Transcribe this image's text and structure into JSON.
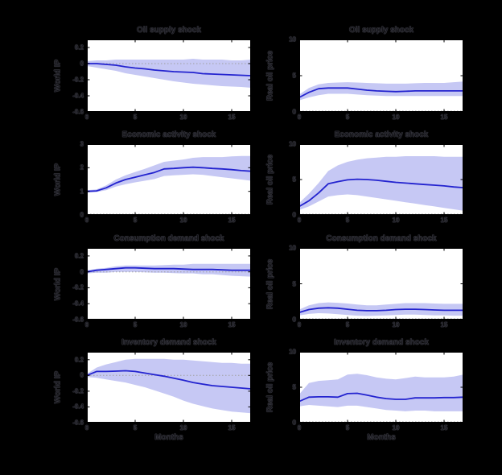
{
  "figure": {
    "xlabel": "Months",
    "row_titles": [
      "Oil supply shock",
      "Economic activity shock",
      "Consumption demand shock",
      "Inventory demand shock"
    ],
    "left_column_ylabel": "World IP",
    "right_column_ylabel": "Real oil price"
  },
  "colors": {
    "page_background": "#000000",
    "plot_background": "#ffffff",
    "band": "#c6c8f4",
    "line": "#2323cf",
    "zero_line": "#a0a0a0",
    "frame": "#000000",
    "tick": "#000000"
  },
  "chart_data": [
    {
      "type": "line",
      "title": "Oil supply shock",
      "ylabel": "World IP",
      "xlabel": "",
      "xlim": [
        0,
        17
      ],
      "ylim": [
        -0.6,
        0.3
      ],
      "xticks": [
        0,
        5,
        10,
        15
      ],
      "xtick_labels": [
        "0",
        "5",
        "10",
        "15"
      ],
      "yticks": [
        0.2,
        0,
        -0.2,
        -0.4,
        -0.6
      ],
      "ytick_labels": [
        "0.2",
        "0",
        "-0.2",
        "-0.4",
        "-0.6"
      ],
      "zero_line": true,
      "grid": false,
      "legend": "none",
      "x": [
        0,
        1,
        2,
        3,
        4,
        5,
        6,
        7,
        8,
        9,
        10,
        11,
        12,
        13,
        14,
        15,
        16,
        17
      ],
      "series": [
        {
          "name": "median",
          "values": [
            0,
            0,
            -0.01,
            -0.02,
            -0.04,
            -0.055,
            -0.065,
            -0.08,
            -0.09,
            -0.1,
            -0.105,
            -0.11,
            -0.125,
            -0.13,
            -0.135,
            -0.14,
            -0.145,
            -0.15
          ]
        },
        {
          "name": "lower_band",
          "values": [
            -0.03,
            -0.05,
            -0.07,
            -0.09,
            -0.12,
            -0.14,
            -0.16,
            -0.18,
            -0.2,
            -0.22,
            -0.235,
            -0.25,
            -0.26,
            -0.27,
            -0.28,
            -0.285,
            -0.29,
            -0.3
          ]
        },
        {
          "name": "upper_band",
          "values": [
            0.03,
            0.04,
            0.04,
            0.05,
            0.05,
            0.05,
            0.05,
            0.05,
            0.05,
            0.05,
            0.05,
            0.06,
            0.05,
            0.05,
            0.05,
            0.04,
            0.04,
            0.05
          ]
        }
      ]
    },
    {
      "type": "line",
      "title": "Oil supply shock",
      "ylabel": "Real oil price",
      "xlabel": "",
      "xlim": [
        0,
        17
      ],
      "ylim": [
        0,
        10
      ],
      "xticks": [
        0,
        5,
        10,
        15
      ],
      "xtick_labels": [
        "0",
        "5",
        "10",
        "15"
      ],
      "yticks": [
        10,
        5,
        0
      ],
      "ytick_labels": [
        "10",
        "5",
        "0"
      ],
      "zero_line": true,
      "grid": false,
      "legend": "none",
      "x": [
        0,
        1,
        2,
        3,
        4,
        5,
        6,
        7,
        8,
        9,
        10,
        11,
        12,
        13,
        14,
        15,
        16,
        17
      ],
      "series": [
        {
          "name": "median",
          "values": [
            2.0,
            2.7,
            3.2,
            3.3,
            3.3,
            3.3,
            3.15,
            3.0,
            2.9,
            2.85,
            2.8,
            2.85,
            2.9,
            2.9,
            2.9,
            2.9,
            2.9,
            2.9
          ]
        },
        {
          "name": "lower_band",
          "values": [
            1.6,
            2.0,
            2.3,
            2.5,
            2.5,
            2.5,
            2.4,
            2.3,
            2.25,
            2.2,
            2.2,
            2.2,
            2.2,
            2.2,
            2.2,
            2.2,
            2.2,
            2.2
          ]
        },
        {
          "name": "upper_band",
          "values": [
            2.4,
            3.3,
            3.8,
            4.0,
            4.05,
            4.1,
            4.05,
            4.0,
            3.95,
            3.9,
            3.9,
            3.9,
            3.95,
            4.0,
            4.0,
            4.0,
            4.1,
            4.2
          ]
        }
      ]
    },
    {
      "type": "line",
      "title": "Economic activity shock",
      "ylabel": "World IP",
      "xlabel": "",
      "xlim": [
        0,
        17
      ],
      "ylim": [
        0,
        3
      ],
      "xticks": [
        0,
        5,
        10,
        15
      ],
      "xtick_labels": [
        "0",
        "5",
        "10",
        "15"
      ],
      "yticks": [
        3,
        2,
        1,
        0
      ],
      "ytick_labels": [
        "3",
        "2",
        "1",
        "0"
      ],
      "zero_line": true,
      "grid": false,
      "legend": "none",
      "x": [
        0,
        1,
        2,
        3,
        4,
        5,
        6,
        7,
        8,
        9,
        10,
        11,
        12,
        13,
        14,
        15,
        16,
        17
      ],
      "series": [
        {
          "name": "median",
          "values": [
            1.0,
            1.02,
            1.15,
            1.35,
            1.5,
            1.6,
            1.7,
            1.8,
            1.95,
            1.97,
            2.0,
            2.02,
            2.0,
            1.97,
            1.95,
            1.92,
            1.88,
            1.85
          ]
        },
        {
          "name": "lower_band",
          "values": [
            0.95,
            0.97,
            1.05,
            1.2,
            1.3,
            1.38,
            1.45,
            1.52,
            1.65,
            1.68,
            1.7,
            1.72,
            1.7,
            1.65,
            1.6,
            1.55,
            1.5,
            1.45
          ]
        },
        {
          "name": "upper_band",
          "values": [
            1.05,
            1.08,
            1.25,
            1.5,
            1.68,
            1.82,
            1.95,
            2.1,
            2.25,
            2.3,
            2.35,
            2.42,
            2.45,
            2.45,
            2.45,
            2.48,
            2.5,
            2.5
          ]
        }
      ]
    },
    {
      "type": "line",
      "title": "Economic activity shock",
      "ylabel": "Real oil price",
      "xlabel": "",
      "xlim": [
        0,
        17
      ],
      "ylim": [
        0,
        10
      ],
      "xticks": [
        0,
        5,
        10,
        15
      ],
      "xtick_labels": [
        "0",
        "5",
        "10",
        "15"
      ],
      "yticks": [
        10,
        5,
        0
      ],
      "ytick_labels": [
        "10",
        "5",
        "0"
      ],
      "zero_line": true,
      "grid": false,
      "legend": "none",
      "x": [
        0,
        1,
        2,
        3,
        4,
        5,
        6,
        7,
        8,
        9,
        10,
        11,
        12,
        13,
        14,
        15,
        16,
        17
      ],
      "series": [
        {
          "name": "median",
          "values": [
            1.2,
            2.0,
            3.1,
            4.4,
            4.7,
            4.95,
            5.05,
            5.0,
            4.9,
            4.75,
            4.6,
            4.5,
            4.4,
            4.3,
            4.2,
            4.1,
            3.95,
            3.85
          ]
        },
        {
          "name": "lower_band",
          "values": [
            0.7,
            1.2,
            1.9,
            2.6,
            2.8,
            2.9,
            2.8,
            2.6,
            2.4,
            2.2,
            2.0,
            1.8,
            1.6,
            1.4,
            1.2,
            1.0,
            0.8,
            0.6
          ]
        },
        {
          "name": "upper_band",
          "values": [
            1.7,
            3.0,
            4.5,
            6.2,
            7.0,
            7.5,
            7.8,
            8.0,
            8.1,
            8.2,
            8.2,
            8.3,
            8.3,
            8.3,
            8.3,
            8.2,
            8.2,
            8.2
          ]
        }
      ]
    },
    {
      "type": "line",
      "title": "Consumption demand shock",
      "ylabel": "World IP",
      "xlabel": "",
      "xlim": [
        0,
        17
      ],
      "ylim": [
        -0.6,
        0.3
      ],
      "xticks": [
        0,
        5,
        10,
        15
      ],
      "xtick_labels": [
        "0",
        "5",
        "10",
        "15"
      ],
      "yticks": [
        0.2,
        0,
        -0.2,
        -0.4,
        -0.6
      ],
      "ytick_labels": [
        "0.2",
        "0",
        "-0.2",
        "-0.4",
        "-0.6"
      ],
      "zero_line": true,
      "grid": false,
      "legend": "none",
      "x": [
        0,
        1,
        2,
        3,
        4,
        5,
        6,
        7,
        8,
        9,
        10,
        11,
        12,
        13,
        14,
        15,
        16,
        17
      ],
      "series": [
        {
          "name": "median",
          "values": [
            0.0,
            0.02,
            0.03,
            0.04,
            0.05,
            0.05,
            0.045,
            0.04,
            0.04,
            0.04,
            0.035,
            0.03,
            0.03,
            0.03,
            0.025,
            0.02,
            0.02,
            0.02
          ]
        },
        {
          "name": "lower_band",
          "values": [
            -0.02,
            -0.01,
            -0.01,
            0.0,
            0.0,
            0.0,
            -0.005,
            -0.01,
            -0.01,
            -0.015,
            -0.02,
            -0.02,
            -0.03,
            -0.03,
            -0.04,
            -0.05,
            -0.055,
            -0.06
          ]
        },
        {
          "name": "upper_band",
          "values": [
            0.02,
            0.04,
            0.05,
            0.07,
            0.08,
            0.08,
            0.08,
            0.08,
            0.085,
            0.09,
            0.09,
            0.1,
            0.1,
            0.1,
            0.1,
            0.1,
            0.1,
            0.1
          ]
        }
      ]
    },
    {
      "type": "line",
      "title": "Consumption demand shock",
      "ylabel": "Real oil price",
      "xlabel": "",
      "xlim": [
        0,
        17
      ],
      "ylim": [
        0,
        10
      ],
      "xticks": [
        0,
        5,
        10,
        15
      ],
      "xtick_labels": [
        "0",
        "5",
        "10",
        "15"
      ],
      "yticks": [
        10,
        5,
        0
      ],
      "ytick_labels": [
        "10",
        "5",
        "0"
      ],
      "zero_line": true,
      "grid": false,
      "legend": "none",
      "x": [
        0,
        1,
        2,
        3,
        4,
        5,
        6,
        7,
        8,
        9,
        10,
        11,
        12,
        13,
        14,
        15,
        16,
        17
      ],
      "series": [
        {
          "name": "median",
          "values": [
            1.0,
            1.4,
            1.6,
            1.65,
            1.6,
            1.45,
            1.3,
            1.25,
            1.25,
            1.3,
            1.4,
            1.45,
            1.45,
            1.4,
            1.35,
            1.3,
            1.3,
            1.3
          ]
        },
        {
          "name": "lower_band",
          "values": [
            0.6,
            0.8,
            0.9,
            0.85,
            0.75,
            0.65,
            0.55,
            0.5,
            0.55,
            0.6,
            0.65,
            0.7,
            0.7,
            0.65,
            0.6,
            0.6,
            0.55,
            0.55
          ]
        },
        {
          "name": "upper_band",
          "values": [
            1.4,
            2.0,
            2.3,
            2.4,
            2.35,
            2.25,
            2.1,
            2.0,
            2.0,
            2.1,
            2.2,
            2.3,
            2.3,
            2.3,
            2.25,
            2.2,
            2.2,
            2.2
          ]
        }
      ]
    },
    {
      "type": "line",
      "title": "Inventory demand shock",
      "ylabel": "World IP",
      "xlabel": "Months",
      "xlim": [
        0,
        17
      ],
      "ylim": [
        -0.6,
        0.3
      ],
      "xticks": [
        0,
        5,
        10,
        15
      ],
      "xtick_labels": [
        "0",
        "5",
        "10",
        "15"
      ],
      "yticks": [
        0.2,
        0,
        -0.2,
        -0.4,
        -0.6
      ],
      "ytick_labels": [
        "0.2",
        "0",
        "-0.2",
        "-0.4",
        "-0.6"
      ],
      "zero_line": true,
      "grid": false,
      "legend": "none",
      "x": [
        0,
        1,
        2,
        3,
        4,
        5,
        6,
        7,
        8,
        9,
        10,
        11,
        12,
        13,
        14,
        15,
        16,
        17
      ],
      "series": [
        {
          "name": "median",
          "values": [
            0.0,
            0.05,
            0.05,
            0.055,
            0.06,
            0.05,
            0.03,
            0.01,
            -0.01,
            -0.035,
            -0.06,
            -0.09,
            -0.11,
            -0.13,
            -0.14,
            -0.15,
            -0.16,
            -0.17
          ]
        },
        {
          "name": "lower_band",
          "values": [
            -0.02,
            -0.03,
            -0.05,
            -0.07,
            -0.09,
            -0.12,
            -0.15,
            -0.19,
            -0.23,
            -0.27,
            -0.32,
            -0.36,
            -0.39,
            -0.42,
            -0.44,
            -0.46,
            -0.47,
            -0.48
          ]
        },
        {
          "name": "upper_band",
          "values": [
            0.02,
            0.1,
            0.14,
            0.17,
            0.2,
            0.21,
            0.21,
            0.21,
            0.21,
            0.2,
            0.2,
            0.19,
            0.18,
            0.17,
            0.16,
            0.16,
            0.15,
            0.15
          ]
        }
      ]
    },
    {
      "type": "line",
      "title": "Inventory demand shock",
      "ylabel": "Real oil price",
      "xlabel": "Months",
      "xlim": [
        0,
        17
      ],
      "ylim": [
        0,
        10
      ],
      "xticks": [
        0,
        5,
        10,
        15
      ],
      "xtick_labels": [
        "0",
        "5",
        "10",
        "15"
      ],
      "yticks": [
        10,
        5,
        0
      ],
      "ytick_labels": [
        "10",
        "5",
        "0"
      ],
      "zero_line": true,
      "grid": false,
      "legend": "none",
      "x": [
        0,
        1,
        2,
        3,
        4,
        5,
        6,
        7,
        8,
        9,
        10,
        11,
        12,
        13,
        14,
        15,
        16,
        17
      ],
      "series": [
        {
          "name": "median",
          "values": [
            3.0,
            3.6,
            3.65,
            3.65,
            3.6,
            4.1,
            4.15,
            3.9,
            3.6,
            3.4,
            3.3,
            3.3,
            3.5,
            3.5,
            3.5,
            3.55,
            3.55,
            3.6
          ]
        },
        {
          "name": "lower_band",
          "values": [
            2.3,
            2.5,
            2.4,
            2.3,
            2.2,
            2.4,
            2.4,
            2.2,
            2.0,
            1.8,
            1.7,
            1.6,
            1.7,
            1.7,
            1.6,
            1.6,
            1.6,
            1.6
          ]
        },
        {
          "name": "upper_band",
          "values": [
            4.0,
            5.6,
            5.9,
            6.0,
            6.1,
            6.8,
            6.9,
            6.7,
            6.4,
            6.2,
            6.1,
            6.3,
            6.5,
            6.4,
            6.4,
            6.4,
            6.5,
            6.8
          ]
        }
      ]
    }
  ]
}
